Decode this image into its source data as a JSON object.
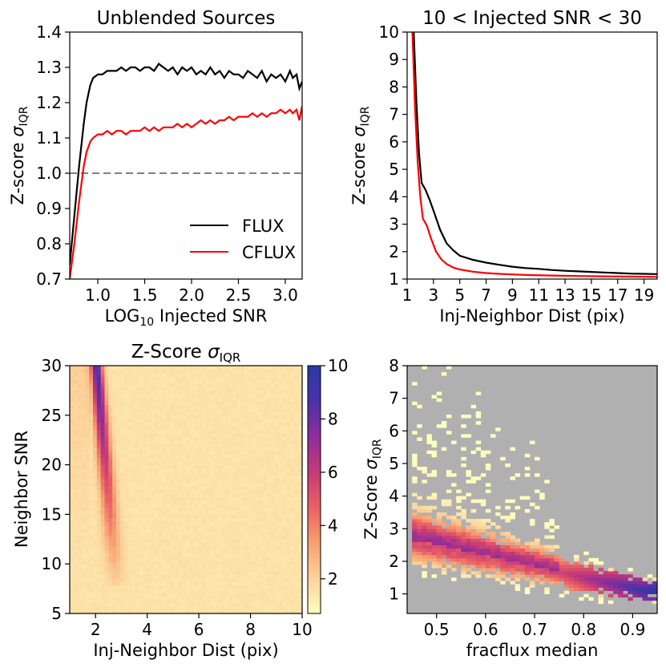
{
  "chart_data": [
    {
      "type": "line",
      "title": "Unblended Sources",
      "xlabel": "LOG10 Injected SNR",
      "xlabel_main": "LOG",
      "xlabel_sub": "10",
      "xlabel_rest": " Injected SNR",
      "ylabel_main": "Z-score ",
      "ylabel_sigma": "σ",
      "ylabel_sub": "IQR",
      "xlim": [
        0.7,
        3.18
      ],
      "ylim": [
        0.7,
        1.4
      ],
      "xticks": [
        1.0,
        1.5,
        2.0,
        2.5,
        3.0
      ],
      "xtick_labels": [
        "1.0",
        "1.5",
        "2.0",
        "2.5",
        "3.0"
      ],
      "yticks": [
        0.7,
        0.8,
        0.9,
        1.0,
        1.1,
        1.2,
        1.3,
        1.4
      ],
      "ytick_labels": [
        "0.7",
        "0.8",
        "0.9",
        "1.0",
        "1.1",
        "1.2",
        "1.3",
        "1.4"
      ],
      "reference_line": {
        "y": 1.0,
        "style": "dashed",
        "color": "#808080"
      },
      "legend_position": "lower-right",
      "series": [
        {
          "name": "FLUX",
          "color": "#000000",
          "x": [
            0.7,
            0.75,
            0.8,
            0.85,
            0.88,
            0.92,
            0.95,
            1.0,
            1.05,
            1.1,
            1.15,
            1.2,
            1.25,
            1.3,
            1.35,
            1.4,
            1.45,
            1.5,
            1.55,
            1.6,
            1.65,
            1.7,
            1.75,
            1.8,
            1.85,
            1.9,
            1.95,
            2.0,
            2.05,
            2.1,
            2.15,
            2.2,
            2.25,
            2.3,
            2.35,
            2.4,
            2.45,
            2.5,
            2.55,
            2.6,
            2.65,
            2.7,
            2.75,
            2.8,
            2.85,
            2.9,
            2.95,
            3.0,
            3.05,
            3.08,
            3.12,
            3.15,
            3.18
          ],
          "y": [
            0.74,
            0.88,
            1.02,
            1.14,
            1.2,
            1.25,
            1.27,
            1.28,
            1.28,
            1.29,
            1.29,
            1.29,
            1.3,
            1.29,
            1.3,
            1.3,
            1.29,
            1.3,
            1.3,
            1.29,
            1.31,
            1.3,
            1.29,
            1.3,
            1.28,
            1.3,
            1.29,
            1.3,
            1.28,
            1.29,
            1.28,
            1.3,
            1.28,
            1.29,
            1.27,
            1.29,
            1.28,
            1.28,
            1.27,
            1.29,
            1.28,
            1.27,
            1.29,
            1.26,
            1.28,
            1.27,
            1.28,
            1.26,
            1.29,
            1.27,
            1.28,
            1.24,
            1.26
          ]
        },
        {
          "name": "CFLUX",
          "color": "#ff0000",
          "x": [
            0.7,
            0.75,
            0.8,
            0.85,
            0.88,
            0.92,
            0.95,
            1.0,
            1.05,
            1.1,
            1.15,
            1.2,
            1.25,
            1.3,
            1.35,
            1.4,
            1.45,
            1.5,
            1.55,
            1.6,
            1.65,
            1.7,
            1.75,
            1.8,
            1.85,
            1.9,
            1.95,
            2.0,
            2.05,
            2.1,
            2.15,
            2.2,
            2.25,
            2.3,
            2.35,
            2.4,
            2.45,
            2.5,
            2.55,
            2.6,
            2.65,
            2.7,
            2.75,
            2.8,
            2.85,
            2.9,
            2.95,
            3.0,
            3.05,
            3.08,
            3.12,
            3.15,
            3.18
          ],
          "y": [
            0.7,
            0.8,
            0.92,
            1.02,
            1.06,
            1.09,
            1.1,
            1.11,
            1.11,
            1.12,
            1.11,
            1.12,
            1.12,
            1.11,
            1.12,
            1.12,
            1.12,
            1.13,
            1.12,
            1.13,
            1.12,
            1.13,
            1.13,
            1.13,
            1.14,
            1.13,
            1.14,
            1.13,
            1.14,
            1.15,
            1.14,
            1.15,
            1.14,
            1.15,
            1.15,
            1.16,
            1.15,
            1.16,
            1.16,
            1.16,
            1.17,
            1.16,
            1.17,
            1.16,
            1.17,
            1.17,
            1.18,
            1.17,
            1.18,
            1.17,
            1.18,
            1.15,
            1.19
          ]
        }
      ]
    },
    {
      "type": "line",
      "title": "10 < Injected SNR < 30",
      "xlabel": "Inj-Neighbor Dist (pix)",
      "ylabel_main": "Z-score ",
      "ylabel_sigma": "σ",
      "ylabel_sub": "IQR",
      "xlim": [
        1,
        20
      ],
      "ylim": [
        1,
        10
      ],
      "xticks": [
        1,
        3,
        5,
        7,
        9,
        11,
        13,
        15,
        17,
        19
      ],
      "xtick_labels": [
        "1",
        "3",
        "5",
        "7",
        "9",
        "11",
        "13",
        "15",
        "17",
        "19"
      ],
      "yticks": [
        1,
        2,
        3,
        4,
        5,
        6,
        7,
        8,
        9,
        10
      ],
      "ytick_labels": [
        "1",
        "2",
        "3",
        "4",
        "5",
        "6",
        "7",
        "8",
        "9",
        "10"
      ],
      "series": [
        {
          "color": "#000000",
          "x": [
            1.5,
            1.7,
            1.9,
            2.1,
            2.4,
            2.7,
            3.0,
            3.5,
            4.0,
            4.5,
            5.0,
            6.0,
            7.0,
            8.0,
            9.0,
            10.0,
            11.0,
            12.0,
            13.0,
            14.0,
            15.0,
            16.0,
            17.0,
            18.0,
            19.0,
            20.0
          ],
          "y": [
            10.0,
            7.5,
            5.6,
            4.5,
            4.25,
            3.9,
            3.5,
            2.8,
            2.3,
            2.05,
            1.85,
            1.7,
            1.6,
            1.52,
            1.45,
            1.4,
            1.37,
            1.33,
            1.3,
            1.28,
            1.26,
            1.24,
            1.22,
            1.2,
            1.19,
            1.18
          ]
        },
        {
          "color": "#ff0000",
          "x": [
            1.4,
            1.6,
            1.8,
            2.0,
            2.2,
            2.5,
            2.8,
            3.2,
            3.6,
            4.0,
            4.5,
            5.0,
            6.0,
            7.0,
            8.0,
            9.0,
            10.0,
            12.0,
            14.0,
            16.0,
            18.0,
            20.0
          ],
          "y": [
            10.0,
            7.2,
            5.3,
            4.0,
            3.2,
            2.95,
            2.5,
            2.0,
            1.72,
            1.55,
            1.42,
            1.35,
            1.27,
            1.22,
            1.19,
            1.17,
            1.15,
            1.13,
            1.11,
            1.1,
            1.09,
            1.08
          ]
        }
      ]
    },
    {
      "type": "heatmap",
      "title_main": "Z-Score ",
      "title_sigma": "σ",
      "title_sub": "IQR",
      "xlabel": "Inj-Neighbor Dist (pix)",
      "ylabel": "Neighbor SNR",
      "xlim": [
        1,
        10
      ],
      "ylim": [
        5,
        30
      ],
      "xticks": [
        2,
        4,
        6,
        8,
        10
      ],
      "xtick_labels": [
        "2",
        "4",
        "6",
        "8",
        "10"
      ],
      "yticks": [
        5,
        10,
        15,
        20,
        25,
        30
      ],
      "ytick_labels": [
        "5",
        "10",
        "15",
        "20",
        "25",
        "30"
      ],
      "colormap": "magma_r",
      "colorbar": {
        "range": [
          0.7,
          10
        ],
        "ticks": [
          2,
          4,
          6,
          8,
          10
        ],
        "tick_labels": [
          "2",
          "4",
          "6",
          "8",
          "10"
        ],
        "stops": [
          "#fcfdbf",
          "#fcd29a",
          "#f7a070",
          "#ea6064",
          "#c53a78",
          "#8e2e9a",
          "#4a32a8",
          "#2a3aa5"
        ]
      },
      "model": "ridge of high values near dist≈2 that rises with neighbor SNR; background ≈1.5"
    },
    {
      "type": "heatmap",
      "xlabel": "fracflux median",
      "ylabel_main": "Z-Score ",
      "ylabel_sigma": "σ",
      "ylabel_sub": "IQR",
      "xlim": [
        0.44,
        0.95
      ],
      "ylim": [
        0.4,
        8
      ],
      "xticks": [
        0.5,
        0.6,
        0.7,
        0.8,
        0.9
      ],
      "xtick_labels": [
        "0.5",
        "0.6",
        "0.7",
        "0.8",
        "0.9"
      ],
      "yticks": [
        1,
        2,
        3,
        4,
        5,
        6,
        7,
        8
      ],
      "ytick_labels": [
        "1",
        "2",
        "3",
        "4",
        "5",
        "6",
        "7",
        "8"
      ],
      "background_color": "#b0b0b0",
      "colormap": "magma_r",
      "model": "dense band falling from ~2.5 at fracflux 0.5 to ~1.1 at 0.95; sparse scatter above"
    }
  ]
}
